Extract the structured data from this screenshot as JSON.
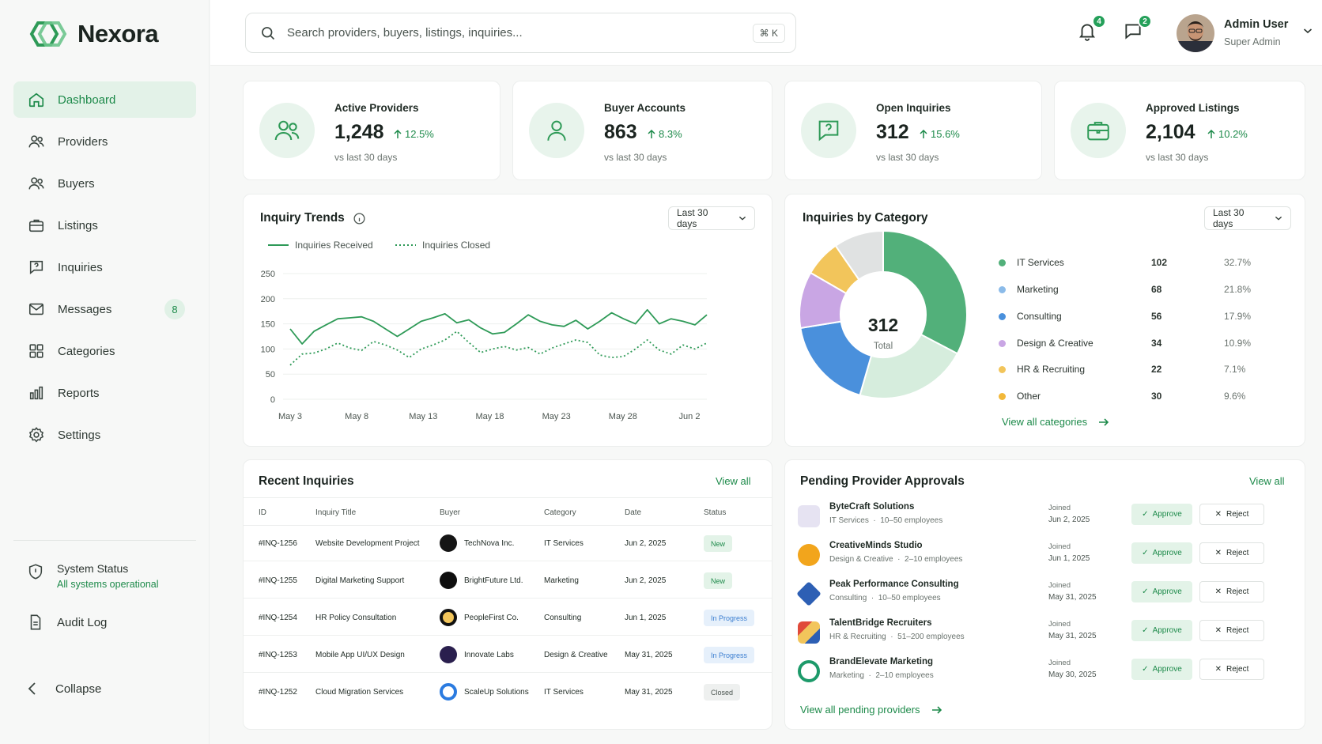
{
  "brand": {
    "name": "Nexora",
    "accent": "#1d8a4a"
  },
  "sidebar": {
    "items": [
      {
        "label": "Dashboard",
        "icon": "home-icon",
        "active": true
      },
      {
        "label": "Providers",
        "icon": "users-icon"
      },
      {
        "label": "Buyers",
        "icon": "users-icon"
      },
      {
        "label": "Listings",
        "icon": "briefcase-icon"
      },
      {
        "label": "Inquiries",
        "icon": "question-message-icon"
      },
      {
        "label": "Messages",
        "icon": "mail-icon",
        "badge": "8"
      },
      {
        "label": "Categories",
        "icon": "grid-icon"
      },
      {
        "label": "Reports",
        "icon": "bar-chart-icon"
      },
      {
        "label": "Settings",
        "icon": "gear-icon"
      }
    ],
    "system_status": {
      "title": "System Status",
      "subtitle": "All systems operational"
    },
    "audit_log": "Audit Log",
    "collapse": "Collapse"
  },
  "header": {
    "search_placeholder": "Search providers, buyers, listings, inquiries...",
    "shortcut": "⌘ K",
    "notifications_count": "4",
    "messages_count": "2",
    "user": {
      "name": "Admin User",
      "role": "Super Admin"
    }
  },
  "kpis": [
    {
      "label": "Active Providers",
      "value": "1,248",
      "change": "12.5%",
      "sub": "vs last 30 days",
      "icon": "users-icon"
    },
    {
      "label": "Buyer Accounts",
      "value": "863",
      "change": "8.3%",
      "sub": "vs last 30 days",
      "icon": "user-icon"
    },
    {
      "label": "Open Inquiries",
      "value": "312",
      "change": "15.6%",
      "sub": "vs last 30 days",
      "icon": "question-message-icon"
    },
    {
      "label": "Approved Listings",
      "value": "2,104",
      "change": "10.2%",
      "sub": "vs last 30 days",
      "icon": "briefcase-icon"
    }
  ],
  "trends": {
    "title": "Inquiry Trends",
    "range": "Last 30 days",
    "chart_data": {
      "type": "line",
      "x_tick_labels": [
        "May 3",
        "May 8",
        "May 13",
        "May 18",
        "May 23",
        "May 28",
        "Jun 2"
      ],
      "ylim": [
        0,
        250
      ],
      "y_ticks": [
        0,
        50,
        100,
        150,
        200,
        250
      ],
      "grid": true,
      "legend_placement": "top-left",
      "series": [
        {
          "name": "Inquiries Received",
          "color": "#2e9a57",
          "style": "solid",
          "values": [
            140,
            110,
            135,
            148,
            160,
            162,
            164,
            155,
            140,
            125,
            140,
            155,
            162,
            170,
            152,
            158,
            142,
            130,
            133,
            150,
            168,
            155,
            148,
            145,
            157,
            140,
            155,
            172,
            160,
            150,
            178,
            150,
            160,
            155,
            148,
            168
          ]
        },
        {
          "name": "Inquiries Closed",
          "color": "#2e9a57",
          "style": "dotted",
          "values": [
            68,
            90,
            92,
            100,
            112,
            102,
            97,
            115,
            108,
            98,
            83,
            100,
            108,
            118,
            135,
            113,
            93,
            100,
            105,
            98,
            103,
            90,
            102,
            110,
            118,
            113,
            88,
            83,
            85,
            100,
            118,
            98,
            90,
            108,
            100,
            112
          ]
        }
      ]
    }
  },
  "categories": {
    "title": "Inquiries by Category",
    "range": "Last 30 days",
    "center_value": "312",
    "center_label": "Total",
    "view_all": "View all categories",
    "chart_data": {
      "type": "pie",
      "donut": true,
      "slices": [
        {
          "label": "IT Services",
          "value": 102,
          "pct": "32.7%",
          "color": "#52b07a"
        },
        {
          "label": "Marketing",
          "value": 68,
          "pct": "21.8%",
          "color": "#d6eddd"
        },
        {
          "label": "Consulting",
          "value": 56,
          "pct": "17.9%",
          "color": "#4a90dc"
        },
        {
          "label": "Design & Creative",
          "value": 34,
          "pct": "10.9%",
          "color": "#c9a6e4"
        },
        {
          "label": "HR & Recruiting",
          "value": 22,
          "pct": "7.1%",
          "color": "#f2c55b"
        },
        {
          "label": "Other",
          "value": 30,
          "pct": "9.6%",
          "color": "#e0e2e2"
        }
      ],
      "legend_dots": [
        "#52b07a",
        "#8bbbe9",
        "#4a90dc",
        "#c9a6e4",
        "#f2c55b",
        "#f2b83a"
      ]
    }
  },
  "recent_inquiries": {
    "title": "Recent Inquiries",
    "view_all": "View all",
    "columns": [
      "ID",
      "Inquiry Title",
      "Buyer",
      "Category",
      "Date",
      "Status"
    ],
    "rows": [
      {
        "id": "#INQ-1256",
        "title": "Website Development Project",
        "buyer": "TechNova Inc.",
        "category": "IT Services",
        "date": "Jun 2, 2025",
        "status": "New",
        "status_kind": "new"
      },
      {
        "id": "#INQ-1255",
        "title": "Digital Marketing Support",
        "buyer": "BrightFuture Ltd.",
        "category": "Marketing",
        "date": "Jun 2, 2025",
        "status": "New",
        "status_kind": "new"
      },
      {
        "id": "#INQ-1254",
        "title": "HR Policy Consultation",
        "buyer": "PeopleFirst Co.",
        "category": "Consulting",
        "date": "Jun 1, 2025",
        "status": "In Progress",
        "status_kind": "prog"
      },
      {
        "id": "#INQ-1253",
        "title": "Mobile App UI/UX Design",
        "buyer": "Innovate Labs",
        "category": "Design & Creative",
        "date": "May 31, 2025",
        "status": "In Progress",
        "status_kind": "prog"
      },
      {
        "id": "#INQ-1252",
        "title": "Cloud Migration Services",
        "buyer": "ScaleUp Solutions",
        "category": "IT Services",
        "date": "May 31, 2025",
        "status": "Closed",
        "status_kind": "closed"
      }
    ]
  },
  "approvals": {
    "title": "Pending Provider Approvals",
    "view_all": "View all",
    "view_all_pending": "View all pending providers",
    "approve_label": "Approve",
    "reject_label": "Reject",
    "joined_label": "Joined",
    "rows": [
      {
        "name": "ByteCraft Solutions",
        "category": "IT Services",
        "size": "10–50 employees",
        "joined": "Jun 2, 2025",
        "logo_color": "#e3e0f0"
      },
      {
        "name": "CreativeMinds Studio",
        "category": "Design & Creative",
        "size": "2–10 employees",
        "joined": "Jun 1, 2025",
        "logo_color": "#f2a51c"
      },
      {
        "name": "Peak Performance Consulting",
        "category": "Consulting",
        "size": "10–50 employees",
        "joined": "May 31, 2025",
        "logo_color": "#2d5fb4"
      },
      {
        "name": "TalentBridge Recruiters",
        "category": "HR & Recruiting",
        "size": "51–200 employees",
        "joined": "May 31, 2025",
        "logo_color": "#e04a3a"
      },
      {
        "name": "BrandElevate Marketing",
        "category": "Marketing",
        "size": "2–10 employees",
        "joined": "May 30, 2025",
        "logo_color": "#1d9a6a"
      }
    ]
  }
}
